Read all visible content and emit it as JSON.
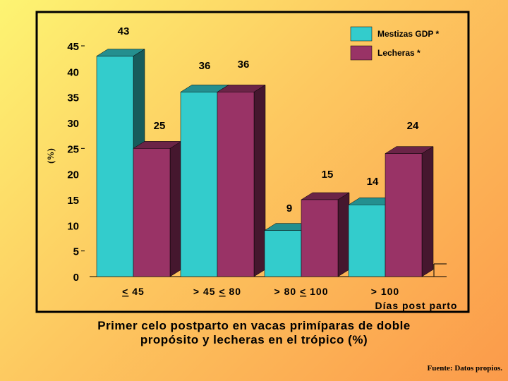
{
  "chart_data": {
    "type": "bar",
    "categories": [
      "< 45",
      "> 45 < 80",
      "> 80 < 100",
      "> 100"
    ],
    "category_display": [
      {
        "parts": [
          "<",
          " 45"
        ],
        "u": [
          true,
          false
        ]
      },
      {
        "parts": [
          "> 45 ",
          "<",
          " 80"
        ],
        "u": [
          false,
          true,
          false
        ]
      },
      {
        "parts": [
          "> 80 ",
          "<",
          " 100"
        ],
        "u": [
          false,
          true,
          false
        ]
      },
      {
        "parts": [
          "> 100"
        ],
        "u": [
          false
        ]
      }
    ],
    "series": [
      {
        "name": "Mestizas GDP *",
        "color": "#33cccc",
        "values": [
          43,
          36,
          9,
          14
        ]
      },
      {
        "name": "Lecheras  *",
        "color": "#993366",
        "values": [
          25,
          36,
          15,
          24
        ]
      }
    ],
    "xlabel": "Días post parto",
    "ylabel": "(%)",
    "ylim": [
      0,
      45
    ],
    "yticks": [
      0,
      5,
      10,
      15,
      20,
      25,
      30,
      35,
      40,
      45
    ],
    "grid": false,
    "legend_position": "top-right"
  },
  "caption": {
    "line1": "Primer celo postparto en vacas primíparas de doble",
    "line2": "propósito y lecheras en el trópico (%)"
  },
  "source": "Fuente:  Datos propios."
}
